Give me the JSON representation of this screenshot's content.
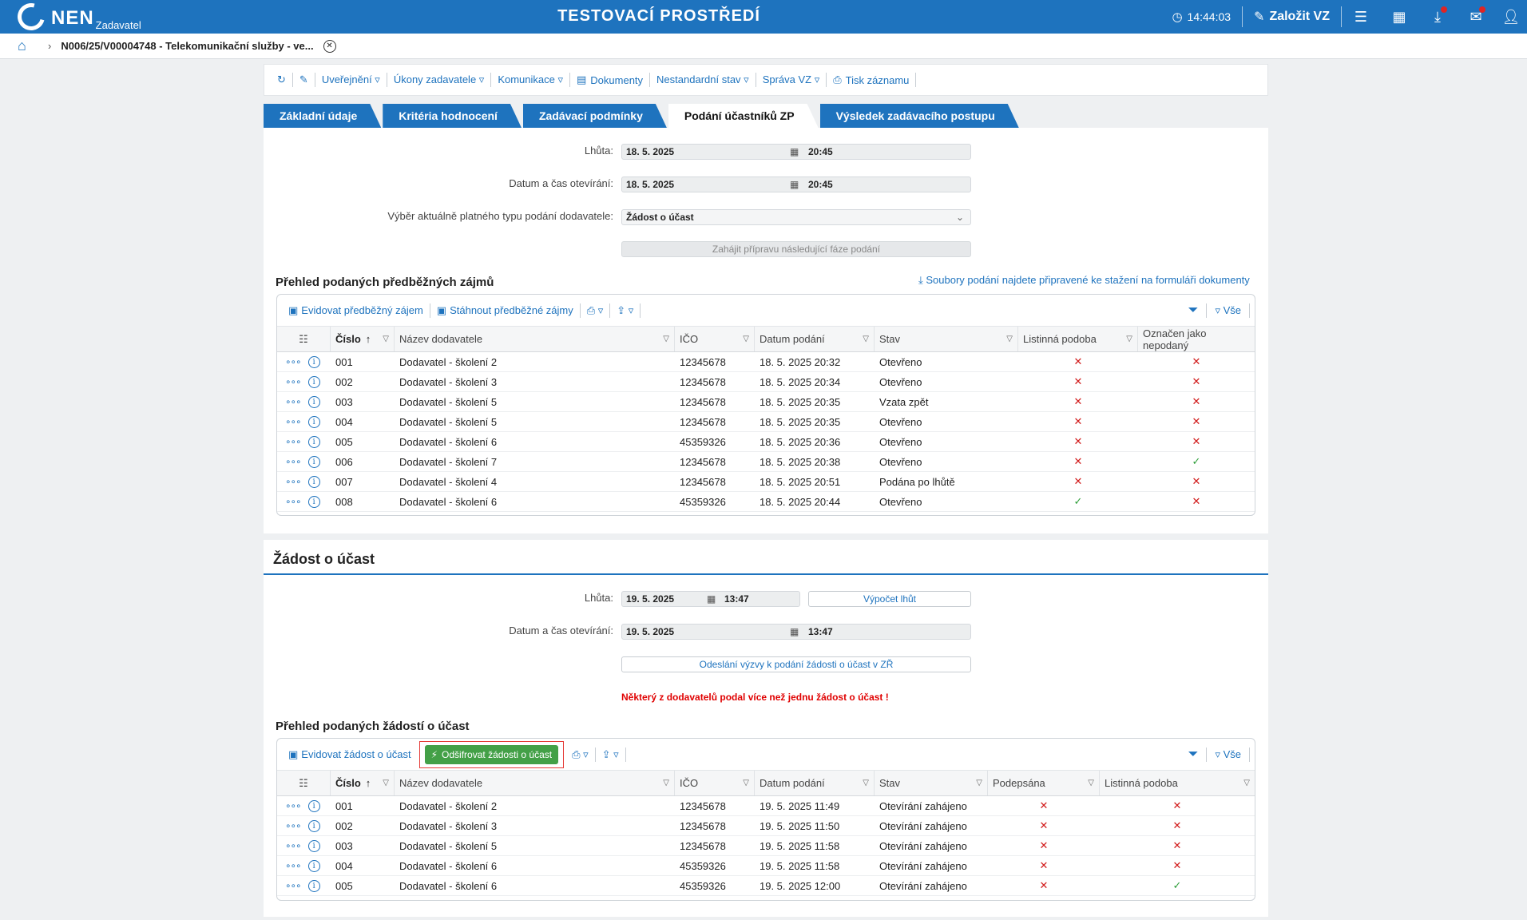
{
  "topbar": {
    "logo_text": "NEN",
    "logo_sub": "Zadavatel",
    "env_title": "TESTOVACÍ PROSTŘEDÍ",
    "time": "14:44:03",
    "create_label": "Založit VZ"
  },
  "breadcrumb": {
    "text": "N006/25/V00004748 - Telekomunikační služby - ve..."
  },
  "toolbar": {
    "items": [
      "Uveřejnění ▿",
      "Úkony zadavatele ▿",
      "Komunikace ▿",
      "Dokumenty",
      "Nestandardní stav ▿",
      "Správa VZ ▿",
      "Tisk záznamu"
    ]
  },
  "tabs": [
    "Základní údaje",
    "Kritéria hodnocení",
    "Zadávací podmínky",
    "Podání účastníků ZP",
    "Výsledek zadávacího postupu"
  ],
  "section1": {
    "deadline_label": "Lhůta:",
    "deadline_date": "18. 5. 2025",
    "deadline_time": "20:45",
    "open_label": "Datum a čas otevírání:",
    "open_date": "18. 5. 2025",
    "open_time": "20:45",
    "type_label": "Výběr aktuálně platného typu podání dodavatele:",
    "type_value": "Žádost o účast",
    "start_btn": "Zahájit přípravu následující fáze podání",
    "overview_title": "Přehled podaných předběžných zájmů",
    "download_link": "Soubory podání najdete připravené ke stažení na formuláři dokumenty",
    "tool_register": "Evidovat předběžný zájem",
    "tool_download": "Stáhnout předběžné zájmy",
    "tool_all": "Vše",
    "headers": [
      "Číslo",
      "Název dodavatele",
      "IČO",
      "Datum podání",
      "Stav",
      "Listinná podoba",
      "Označen jako nepodaný"
    ],
    "rows": [
      {
        "num": "001",
        "name": "Dodavatel - školení 2",
        "ico": "12345678",
        "date": "18. 5. 2025 20:32",
        "state": "Otevřeno",
        "paper": "x",
        "unsub": "x"
      },
      {
        "num": "002",
        "name": "Dodavatel - školení 3",
        "ico": "12345678",
        "date": "18. 5. 2025 20:34",
        "state": "Otevřeno",
        "paper": "x",
        "unsub": "x"
      },
      {
        "num": "003",
        "name": "Dodavatel - školení 5",
        "ico": "12345678",
        "date": "18. 5. 2025 20:35",
        "state": "Vzata zpět",
        "paper": "x",
        "unsub": "x"
      },
      {
        "num": "004",
        "name": "Dodavatel - školení 5",
        "ico": "12345678",
        "date": "18. 5. 2025 20:35",
        "state": "Otevřeno",
        "paper": "x",
        "unsub": "x"
      },
      {
        "num": "005",
        "name": "Dodavatel - školení 6",
        "ico": "45359326",
        "date": "18. 5. 2025 20:36",
        "state": "Otevřeno",
        "paper": "x",
        "unsub": "x"
      },
      {
        "num": "006",
        "name": "Dodavatel - školení 7",
        "ico": "12345678",
        "date": "18. 5. 2025 20:38",
        "state": "Otevřeno",
        "paper": "x",
        "unsub": "ok"
      },
      {
        "num": "007",
        "name": "Dodavatel - školení 4",
        "ico": "12345678",
        "date": "18. 5. 2025 20:51",
        "state": "Podána po lhůtě",
        "paper": "x",
        "unsub": "x"
      },
      {
        "num": "008",
        "name": "Dodavatel - školení 6",
        "ico": "45359326",
        "date": "18. 5. 2025 20:44",
        "state": "Otevřeno",
        "paper": "ok",
        "unsub": "x"
      }
    ]
  },
  "section2": {
    "title": "Žádost o účast",
    "deadline_label": "Lhůta:",
    "deadline_date": "19. 5. 2025",
    "deadline_time": "13:47",
    "calc_btn": "Výpočet lhůt",
    "open_label": "Datum a čas otevírání:",
    "open_date": "19. 5. 2025",
    "open_time": "13:47",
    "invite_btn": "Odeslání výzvy k podání žádosti o účast v ZŘ",
    "warning": "Některý z dodavatelů podal více než jednu žádost o účast !",
    "overview_title": "Přehled podaných žádostí o účast",
    "tool_register": "Evidovat žádost o účast",
    "tool_decrypt": "Odšifrovat žádosti o účast",
    "tool_all": "Vše",
    "headers": [
      "Číslo",
      "Název dodavatele",
      "IČO",
      "Datum podání",
      "Stav",
      "Podepsána",
      "Listinná podoba"
    ],
    "rows": [
      {
        "num": "001",
        "name": "Dodavatel - školení 2",
        "ico": "12345678",
        "date": "19. 5. 2025 11:49",
        "state": "Otevírání zahájeno",
        "signed": "x",
        "paper": "x"
      },
      {
        "num": "002",
        "name": "Dodavatel - školení 3",
        "ico": "12345678",
        "date": "19. 5. 2025 11:50",
        "state": "Otevírání zahájeno",
        "signed": "x",
        "paper": "x"
      },
      {
        "num": "003",
        "name": "Dodavatel - školení 5",
        "ico": "12345678",
        "date": "19. 5. 2025 11:58",
        "state": "Otevírání zahájeno",
        "signed": "x",
        "paper": "x"
      },
      {
        "num": "004",
        "name": "Dodavatel - školení 6",
        "ico": "45359326",
        "date": "19. 5. 2025 11:58",
        "state": "Otevírání zahájeno",
        "signed": "x",
        "paper": "x"
      },
      {
        "num": "005",
        "name": "Dodavatel - školení 6",
        "ico": "45359326",
        "date": "19. 5. 2025 12:00",
        "state": "Otevírání zahájeno",
        "signed": "x",
        "paper": "ok"
      }
    ]
  }
}
